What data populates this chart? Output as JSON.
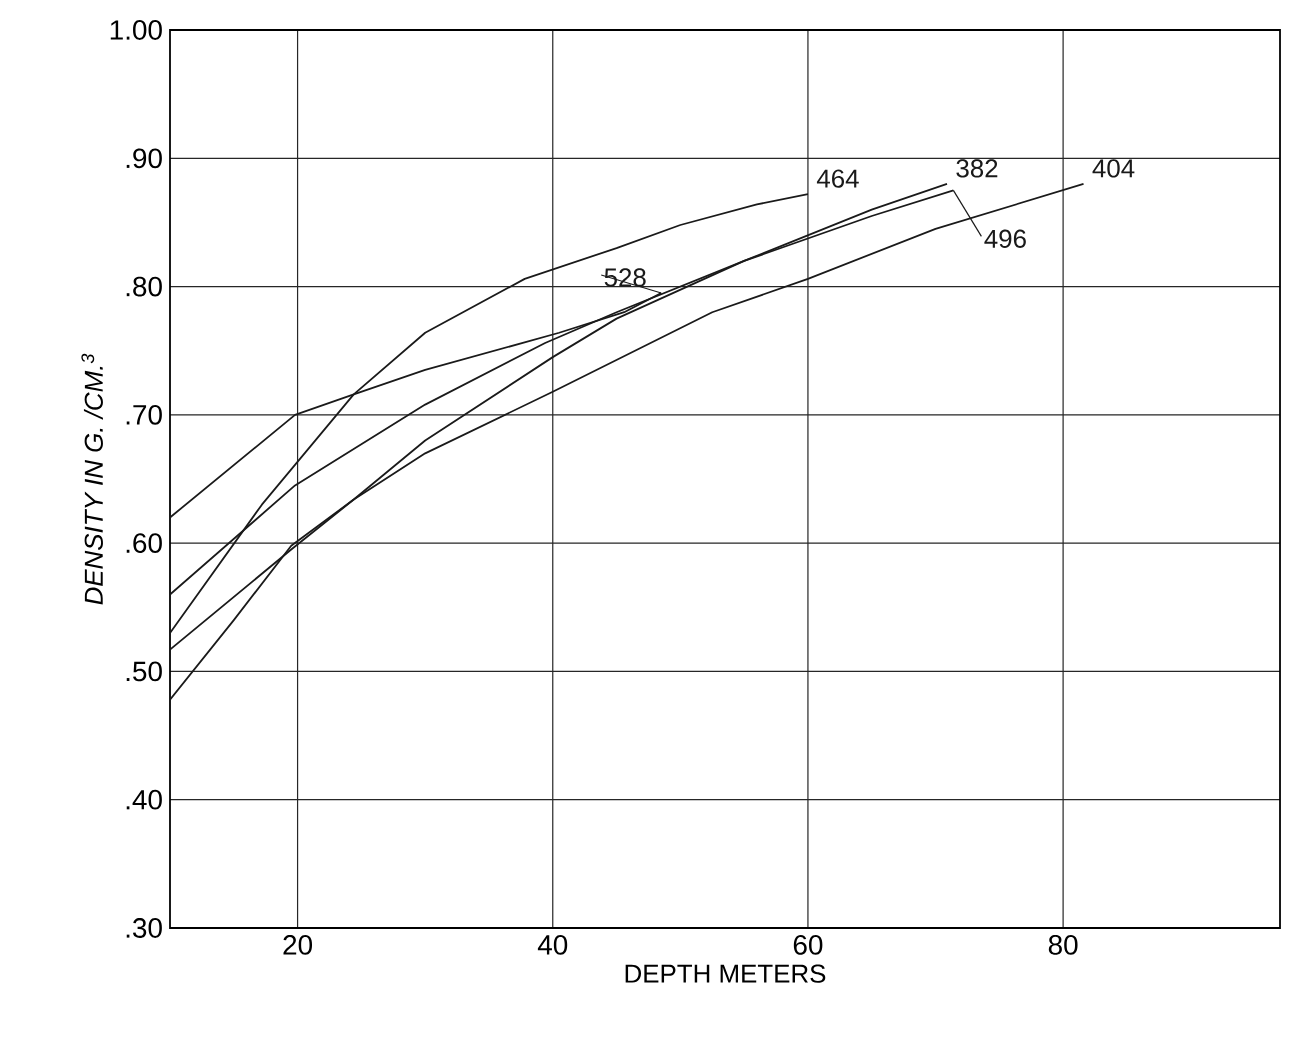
{
  "chart_data": {
    "type": "line",
    "xlabel": "DEPTH METERS",
    "ylabel": "DENSITY IN G. /CM.$^{3}$",
    "xlim": [
      10,
      97
    ],
    "xticks": [
      20,
      40,
      60,
      80
    ],
    "ylim": [
      0.3,
      1.0
    ],
    "yticks": [
      {
        "value": 0.3,
        "label": ".30"
      },
      {
        "value": 0.4,
        "label": ".40"
      },
      {
        "value": 0.5,
        "label": ".50"
      },
      {
        "value": 0.6,
        "label": ".60"
      },
      {
        "value": 0.7,
        "label": ".70"
      },
      {
        "value": 0.8,
        "label": ".80"
      },
      {
        "value": 0.9,
        "label": ".90"
      },
      {
        "value": 1.0,
        "label": "1.00"
      }
    ],
    "grid": true,
    "marker": "none",
    "line_style": "solid",
    "series": [
      {
        "name": "464",
        "color": "#1a1a1a",
        "x": [
          10,
          17.2,
          24.4,
          30,
          37.8,
          45,
          50,
          56,
          60
        ],
        "values": [
          0.53,
          0.63,
          0.716,
          0.764,
          0.806,
          0.83,
          0.848,
          0.864,
          0.872
        ]
      },
      {
        "name": "382",
        "color": "#1a1a1a",
        "x": [
          10,
          15,
          19.5,
          24.4,
          30,
          40,
          45,
          55,
          65,
          70.9
        ],
        "values": [
          0.478,
          0.54,
          0.598,
          0.634,
          0.68,
          0.745,
          0.775,
          0.82,
          0.86,
          0.88
        ]
      },
      {
        "name": "496",
        "color": "#1a1a1a",
        "x": [
          10,
          19.8,
          30,
          39.4,
          45,
          55,
          65,
          71.4
        ],
        "values": [
          0.56,
          0.645,
          0.708,
          0.756,
          0.78,
          0.82,
          0.855,
          0.875
        ]
      },
      {
        "name": "404",
        "color": "#1a1a1a",
        "x": [
          10,
          19.5,
          24.4,
          30,
          40,
          52.5,
          60,
          70,
          81.6
        ],
        "values": [
          0.517,
          0.595,
          0.634,
          0.67,
          0.718,
          0.78,
          0.806,
          0.845,
          0.88
        ]
      },
      {
        "name": "528",
        "color": "#1a1a1a",
        "x": [
          10,
          19.8,
          24.4,
          30,
          40.5,
          45.6,
          48.5
        ],
        "values": [
          0.62,
          0.7,
          0.716,
          0.735,
          0.764,
          0.78,
          0.795
        ]
      }
    ]
  }
}
